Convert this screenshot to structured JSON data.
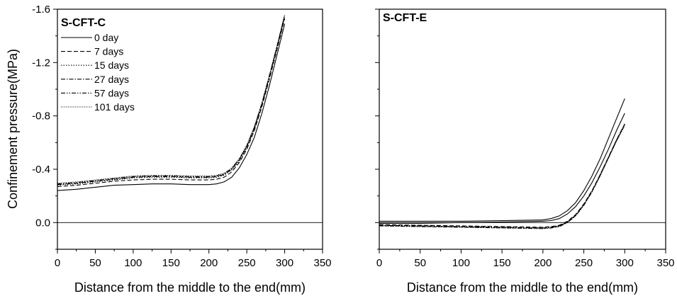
{
  "chart_data": [
    {
      "type": "line",
      "title": "S-CFT-C",
      "xlabel": "Distance from the middle to the end(mm)",
      "ylabel": "Confinement pressure(MPa)",
      "xlim": [
        0,
        350
      ],
      "ylim": [
        0.2,
        -1.6
      ],
      "x_ticks": [
        "0",
        "50",
        "100",
        "150",
        "200",
        "250",
        "300",
        "350"
      ],
      "y_ticks": [
        "-1.6",
        "-1.2",
        "-0.8",
        "-0.4",
        "0.0"
      ],
      "legend_position": "top-left",
      "reference_line_y": 0.0,
      "series": [
        {
          "name": "0 day",
          "dash": "",
          "x": [
            0,
            25,
            50,
            75,
            100,
            125,
            150,
            175,
            200,
            210,
            220,
            230,
            240,
            250,
            260,
            270,
            280,
            290,
            300
          ],
          "values": [
            -0.24,
            -0.25,
            -0.265,
            -0.28,
            -0.285,
            -0.29,
            -0.29,
            -0.285,
            -0.285,
            -0.29,
            -0.305,
            -0.34,
            -0.41,
            -0.51,
            -0.64,
            -0.82,
            -1.03,
            -1.26,
            -1.49
          ]
        },
        {
          "name": "7 days",
          "dash": "6,3",
          "x": [
            0,
            25,
            50,
            75,
            100,
            125,
            150,
            175,
            200,
            210,
            220,
            230,
            240,
            250,
            260,
            270,
            280,
            290,
            300
          ],
          "values": [
            -0.27,
            -0.28,
            -0.295,
            -0.31,
            -0.32,
            -0.325,
            -0.325,
            -0.32,
            -0.32,
            -0.325,
            -0.34,
            -0.38,
            -0.45,
            -0.55,
            -0.69,
            -0.87,
            -1.08,
            -1.3,
            -1.53
          ]
        },
        {
          "name": "15 days",
          "dash": "1.5,2",
          "x": [
            0,
            25,
            50,
            75,
            100,
            125,
            150,
            175,
            200,
            210,
            220,
            230,
            240,
            250,
            260,
            270,
            280,
            290,
            300
          ],
          "values": [
            -0.28,
            -0.29,
            -0.305,
            -0.32,
            -0.335,
            -0.34,
            -0.34,
            -0.335,
            -0.335,
            -0.34,
            -0.355,
            -0.395,
            -0.46,
            -0.56,
            -0.7,
            -0.88,
            -1.09,
            -1.31,
            -1.54
          ]
        },
        {
          "name": "27 days",
          "dash": "6,2,1.5,2",
          "x": [
            0,
            25,
            50,
            75,
            100,
            125,
            150,
            175,
            200,
            210,
            220,
            230,
            240,
            250,
            260,
            270,
            280,
            290,
            300
          ],
          "values": [
            -0.285,
            -0.295,
            -0.31,
            -0.325,
            -0.34,
            -0.345,
            -0.345,
            -0.34,
            -0.34,
            -0.345,
            -0.36,
            -0.4,
            -0.47,
            -0.57,
            -0.71,
            -0.89,
            -1.1,
            -1.32,
            -1.55
          ]
        },
        {
          "name": "57 days",
          "dash": "6,2,1.5,2,1.5,2",
          "x": [
            0,
            25,
            50,
            75,
            100,
            125,
            150,
            175,
            200,
            210,
            220,
            230,
            240,
            250,
            260,
            270,
            280,
            290,
            300
          ],
          "values": [
            -0.29,
            -0.3,
            -0.315,
            -0.33,
            -0.345,
            -0.35,
            -0.35,
            -0.345,
            -0.345,
            -0.35,
            -0.365,
            -0.405,
            -0.475,
            -0.575,
            -0.715,
            -0.895,
            -1.105,
            -1.325,
            -1.555
          ]
        },
        {
          "name": "101 days",
          "dash": "1,1.5",
          "x": [
            0,
            25,
            50,
            75,
            100,
            125,
            150,
            175,
            200,
            210,
            220,
            230,
            240,
            250,
            260,
            270,
            280,
            290,
            300
          ],
          "values": [
            -0.295,
            -0.305,
            -0.32,
            -0.335,
            -0.35,
            -0.355,
            -0.355,
            -0.35,
            -0.35,
            -0.355,
            -0.37,
            -0.41,
            -0.48,
            -0.58,
            -0.72,
            -0.9,
            -1.11,
            -1.33,
            -1.56
          ]
        }
      ]
    },
    {
      "type": "line",
      "title": "S-CFT-E",
      "xlabel": "Distance from the middle to the end(mm)",
      "ylabel": "",
      "xlim": [
        0,
        350
      ],
      "ylim": [
        0.2,
        -1.6
      ],
      "x_ticks": [
        "0",
        "50",
        "100",
        "150",
        "200",
        "250",
        "300",
        "350"
      ],
      "reference_line_y": 0.0,
      "series": [
        {
          "name": "0 day",
          "dash": "",
          "x": [
            0,
            50,
            100,
            150,
            200,
            210,
            220,
            230,
            240,
            250,
            260,
            270,
            280,
            290,
            300
          ],
          "values": [
            -0.01,
            -0.01,
            -0.01,
            -0.015,
            -0.02,
            -0.03,
            -0.05,
            -0.09,
            -0.15,
            -0.24,
            -0.35,
            -0.48,
            -0.63,
            -0.78,
            -0.93
          ]
        },
        {
          "name": "7 days",
          "dash": "6,3",
          "x": [
            0,
            50,
            100,
            150,
            200,
            210,
            220,
            230,
            240,
            250,
            260,
            270,
            280,
            290,
            300
          ],
          "values": [
            0.015,
            0.02,
            0.025,
            0.03,
            0.035,
            0.03,
            0.02,
            -0.01,
            -0.06,
            -0.14,
            -0.24,
            -0.36,
            -0.49,
            -0.62,
            -0.74
          ]
        },
        {
          "name": "15 days",
          "dash": "1.5,2",
          "x": [
            0,
            50,
            100,
            150,
            200,
            210,
            220,
            230,
            240,
            250,
            260,
            270,
            280,
            290,
            300
          ],
          "values": [
            0.02,
            0.025,
            0.03,
            0.035,
            0.04,
            0.035,
            0.025,
            -0.005,
            -0.055,
            -0.135,
            -0.235,
            -0.355,
            -0.485,
            -0.615,
            -0.73
          ]
        },
        {
          "name": "27 days",
          "dash": "6,2,1.5,2",
          "x": [
            0,
            50,
            100,
            150,
            200,
            210,
            220,
            230,
            240,
            250,
            260,
            270,
            280,
            290,
            300
          ],
          "values": [
            0.02,
            0.025,
            0.03,
            0.035,
            0.04,
            0.035,
            0.025,
            -0.005,
            -0.055,
            -0.135,
            -0.235,
            -0.36,
            -0.49,
            -0.62,
            -0.74
          ]
        },
        {
          "name": "57 days",
          "dash": "6,2,1.5,2,1.5,2",
          "x": [
            0,
            50,
            100,
            150,
            200,
            210,
            220,
            230,
            240,
            250,
            260,
            270,
            280,
            290,
            300
          ],
          "values": [
            0.025,
            0.03,
            0.035,
            0.04,
            0.045,
            0.04,
            0.03,
            0.0,
            -0.05,
            -0.13,
            -0.23,
            -0.355,
            -0.485,
            -0.615,
            -0.735
          ]
        },
        {
          "name": "101 days",
          "dash": "1,1.5",
          "x": [
            0,
            50,
            100,
            150,
            200,
            210,
            220,
            230,
            240,
            250,
            260,
            270,
            280,
            290,
            300
          ],
          "values": [
            0.025,
            0.03,
            0.035,
            0.04,
            0.045,
            0.04,
            0.03,
            0.0,
            -0.05,
            -0.13,
            -0.23,
            -0.35,
            -0.48,
            -0.61,
            -0.73
          ]
        },
        {
          "name": "",
          "dash": "",
          "x": [
            0,
            50,
            100,
            150,
            200,
            210,
            220,
            230,
            240,
            250,
            260,
            270,
            280,
            290,
            300
          ],
          "values": [
            0.005,
            0.005,
            0.0,
            -0.005,
            -0.01,
            -0.015,
            -0.03,
            -0.065,
            -0.12,
            -0.2,
            -0.3,
            -0.42,
            -0.55,
            -0.69,
            -0.82
          ]
        }
      ]
    }
  ]
}
